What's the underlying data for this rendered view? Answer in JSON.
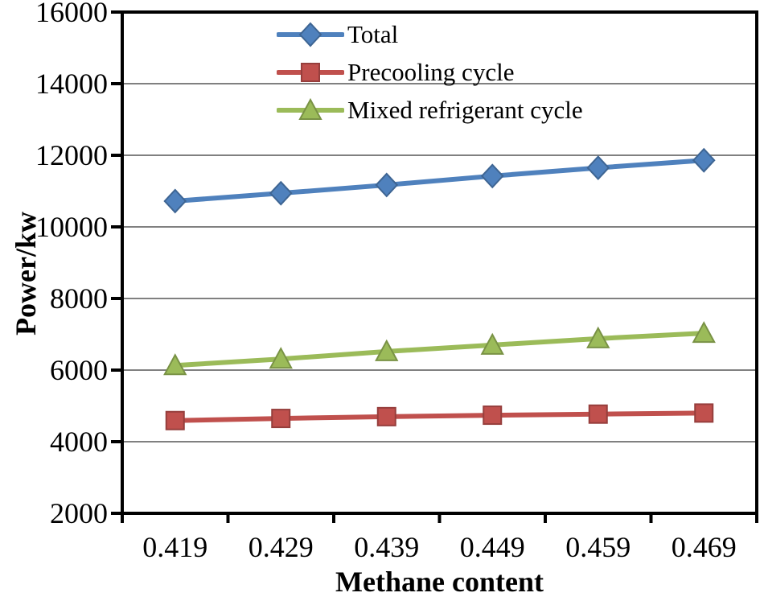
{
  "figure": {
    "background": "#ffffff"
  },
  "chart_data": {
    "type": "line",
    "title": "",
    "xlabel": "Methane content",
    "ylabel": "Power/kw",
    "categories": [
      "0.419",
      "0.429",
      "0.439",
      "0.449",
      "0.459",
      "0.469"
    ],
    "series": [
      {
        "name": "Total",
        "marker": "diamond",
        "color": "#4f81bd",
        "values": [
          10720,
          10940,
          11170,
          11420,
          11650,
          11860
        ]
      },
      {
        "name": "Precooling cycle",
        "marker": "square",
        "color": "#c0504d",
        "values": [
          4590,
          4650,
          4700,
          4740,
          4770,
          4800
        ]
      },
      {
        "name": "Mixed refrigerant cycle",
        "marker": "triangle",
        "color": "#9bbb59",
        "values": [
          6130,
          6310,
          6520,
          6700,
          6880,
          7030
        ]
      }
    ],
    "y_axis": {
      "min": 2000,
      "max": 16000,
      "step": 2000,
      "tick_labels": [
        "2000",
        "4000",
        "6000",
        "8000",
        "10000",
        "12000",
        "14000",
        "16000"
      ]
    },
    "x_axis": {
      "tick_labels": [
        "0.419",
        "0.429",
        "0.439",
        "0.449",
        "0.459",
        "0.469"
      ]
    },
    "grid": true,
    "legend_position": "top-inside",
    "colors": {
      "axis": "#000000",
      "gridline": "#808080",
      "plot_background": "#ffffff"
    }
  }
}
